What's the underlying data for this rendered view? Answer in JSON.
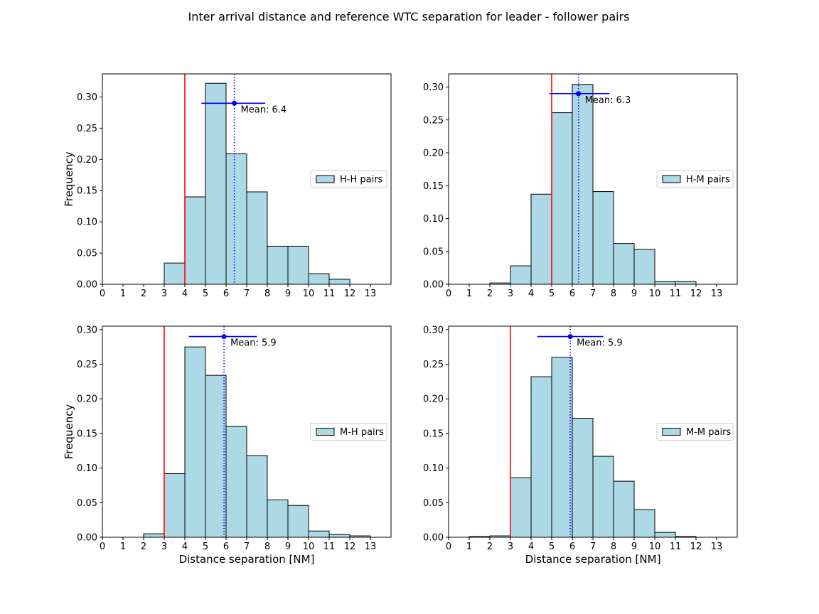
{
  "figure": {
    "title": "Inter arrival distance and reference WTC separation for leader - follower pairs"
  },
  "colors": {
    "bar_fill": "#add8e6",
    "bar_edge": "#000000",
    "reference_line": "#ff0000",
    "mean_marker": "#0000ff"
  },
  "chart_data": [
    {
      "type": "bar",
      "legend": "H-H pairs",
      "legend_position": "center-right",
      "xlabel": "",
      "ylabel": "Frequency",
      "xlim": [
        0,
        14
      ],
      "ylim": [
        0,
        0.337
      ],
      "xticks": [
        "0",
        "1",
        "2",
        "3",
        "4",
        "5",
        "6",
        "7",
        "8",
        "9",
        "10",
        "11",
        "12",
        "13"
      ],
      "yticks": [
        "0.00",
        "0.05",
        "0.10",
        "0.15",
        "0.20",
        "0.25",
        "0.30"
      ],
      "bin_edges": [
        3,
        4,
        5,
        6,
        7,
        8,
        9,
        10,
        11,
        12
      ],
      "values": [
        0.034,
        0.14,
        0.322,
        0.209,
        0.148,
        0.061,
        0.061,
        0.017,
        0.008
      ],
      "reference_separation": 4,
      "mean": 6.4,
      "mean_label": "Mean: 6.4",
      "errorbar": [
        4.8,
        7.9
      ],
      "errorbar_y": 0.29
    },
    {
      "type": "bar",
      "legend": "H-M pairs",
      "legend_position": "center-right",
      "xlabel": "",
      "ylabel": "",
      "xlim": [
        0,
        14
      ],
      "ylim": [
        0,
        0.32
      ],
      "xticks": [
        "0",
        "1",
        "2",
        "3",
        "4",
        "5",
        "6",
        "7",
        "8",
        "9",
        "10",
        "11",
        "12",
        "13"
      ],
      "yticks": [
        "0.00",
        "0.05",
        "0.10",
        "0.15",
        "0.20",
        "0.25",
        "0.30"
      ],
      "bin_edges": [
        2,
        3,
        4,
        5,
        6,
        7,
        8,
        9,
        10,
        11,
        12
      ],
      "values": [
        0.002,
        0.028,
        0.137,
        0.261,
        0.304,
        0.141,
        0.062,
        0.053,
        0.004,
        0.004
      ],
      "reference_separation": 5,
      "mean": 6.3,
      "mean_label": "Mean: 6.3",
      "errorbar": [
        4.9,
        7.8
      ],
      "errorbar_y": 0.29
    },
    {
      "type": "bar",
      "legend": "M-H pairs",
      "legend_position": "center-right",
      "xlabel": "Distance separation [NM]",
      "ylabel": "Frequency",
      "xlim": [
        0,
        14
      ],
      "ylim": [
        0,
        0.305
      ],
      "xticks": [
        "0",
        "1",
        "2",
        "3",
        "4",
        "5",
        "6",
        "7",
        "8",
        "9",
        "10",
        "11",
        "12",
        "13"
      ],
      "yticks": [
        "0.00",
        "0.05",
        "0.10",
        "0.15",
        "0.20",
        "0.25",
        "0.30"
      ],
      "bin_edges": [
        2,
        3,
        4,
        5,
        6,
        7,
        8,
        9,
        10,
        11,
        12,
        13
      ],
      "values": [
        0.005,
        0.092,
        0.275,
        0.234,
        0.16,
        0.118,
        0.054,
        0.046,
        0.009,
        0.004,
        0.002
      ],
      "reference_separation": 3,
      "mean": 5.9,
      "mean_label": "Mean: 5.9",
      "errorbar": [
        4.2,
        7.5
      ],
      "errorbar_y": 0.29
    },
    {
      "type": "bar",
      "legend": "M-M pairs",
      "legend_position": "center-right",
      "xlabel": "Distance separation [NM]",
      "ylabel": "",
      "xlim": [
        0,
        14
      ],
      "ylim": [
        0,
        0.305
      ],
      "xticks": [
        "0",
        "1",
        "2",
        "3",
        "4",
        "5",
        "6",
        "7",
        "8",
        "9",
        "10",
        "11",
        "12",
        "13"
      ],
      "yticks": [
        "0.00",
        "0.05",
        "0.10",
        "0.15",
        "0.20",
        "0.25",
        "0.30"
      ],
      "bin_edges": [
        1,
        2,
        3,
        4,
        5,
        6,
        7,
        8,
        9,
        10,
        11,
        12
      ],
      "values": [
        0.001,
        0.002,
        0.086,
        0.232,
        0.26,
        0.172,
        0.117,
        0.081,
        0.04,
        0.007,
        0.001
      ],
      "reference_separation": 3,
      "mean": 5.9,
      "mean_label": "Mean: 5.9",
      "errorbar": [
        4.3,
        7.5
      ],
      "errorbar_y": 0.29
    }
  ]
}
